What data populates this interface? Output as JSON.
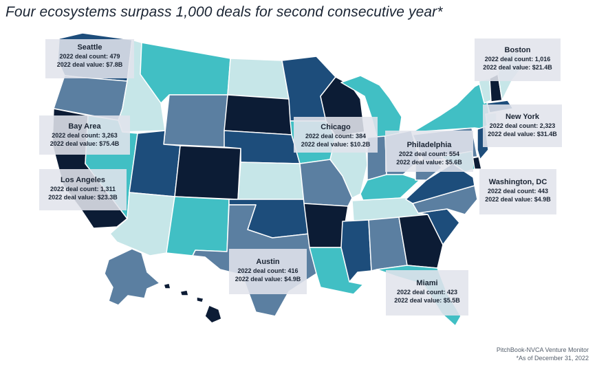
{
  "title": "Four ecosystems surpass 1,000 deals for second consecutive year*",
  "source": "PitchBook-NVCA Venture Monitor",
  "footnote": "*As of December 31, 2022",
  "colors": {
    "navy": "#0c1c35",
    "dark_blue": "#1d4d7b",
    "slate_blue": "#5b7fa1",
    "teal": "#41bfc4",
    "pale_teal": "#c6e6e8",
    "callout_bg": "#e1e4ec"
  },
  "callouts": [
    {
      "id": "seattle",
      "city": "Seattle",
      "count_line": "2022 deal count: 479",
      "value_line": "2022 deal value: $7.8B"
    },
    {
      "id": "bay-area",
      "city": "Bay Area",
      "count_line": "2022 deal count: 3,263",
      "value_line": "2022 deal value: $75.4B"
    },
    {
      "id": "los-angeles",
      "city": "Los Angeles",
      "count_line": "2022 deal count: 1,311",
      "value_line": "2022 deal value: $23.3B"
    },
    {
      "id": "chicago",
      "city": "Chicago",
      "count_line": "2022 deal count: 384",
      "value_line": "2022 deal value: $10.2B"
    },
    {
      "id": "philadelphia",
      "city": "Philadelphia",
      "count_line": "2022 deal count: 554",
      "value_line": "2022 deal value: $5.6B"
    },
    {
      "id": "boston",
      "city": "Boston",
      "count_line": "2022 deal count: 1,016",
      "value_line": "2022 deal value: $21.4B"
    },
    {
      "id": "new-york",
      "city": "New York",
      "count_line": "2022 deal count: 2,323",
      "value_line": "2022 deal value: $31.4B"
    },
    {
      "id": "washington-dc",
      "city": "Washington, DC",
      "count_line": "2022 deal count: 443",
      "value_line": "2022 deal value: $4.9B"
    },
    {
      "id": "austin",
      "city": "Austin",
      "count_line": "2022 deal count: 416",
      "value_line": "2022 deal value: $4.9B"
    },
    {
      "id": "miami",
      "city": "Miami",
      "count_line": "2022 deal count: 423",
      "value_line": "2022 deal value: $5.5B"
    }
  ]
}
